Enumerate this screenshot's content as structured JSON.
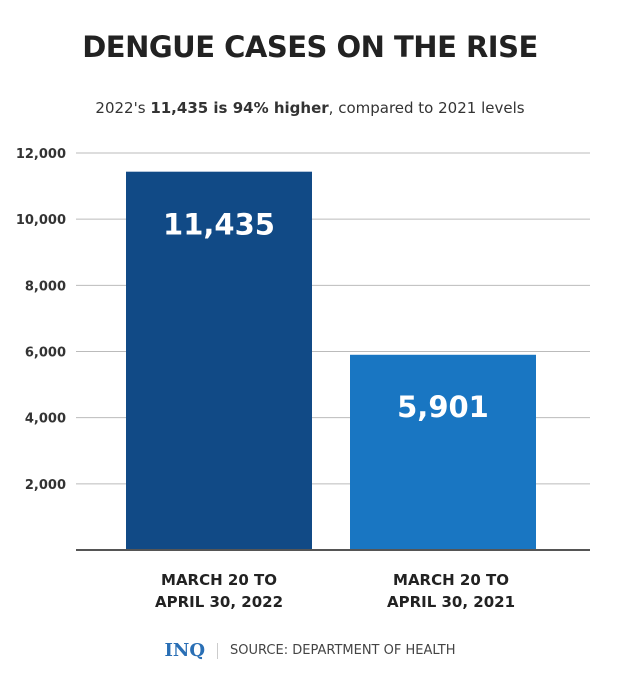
{
  "chart_data": {
    "type": "bar",
    "title": "DENGUE CASES ON THE RISE",
    "subtitle": {
      "pre": "2022's ",
      "bold": "11,435 is 94% higher",
      "post": ", compared to 2021 levels"
    },
    "categories": [
      "MARCH 20 TO\nAPRIL 30, 2022",
      "MARCH 20 TO\nAPRIL 30, 2021"
    ],
    "values": [
      11435,
      5901
    ],
    "data_labels": [
      "11,435",
      "5,901"
    ],
    "ylim": [
      0,
      12000
    ],
    "yticks": [
      2000,
      4000,
      6000,
      8000,
      10000,
      12000
    ],
    "ytick_labels": [
      "2,000",
      "4,000",
      "6,000",
      "8,000",
      "10,000",
      "12,000"
    ],
    "grid": true,
    "colors": [
      "#114a86",
      "#1976c2"
    ]
  },
  "footer": {
    "logo": "INQ",
    "source": "SOURCE: DEPARTMENT OF HEALTH"
  }
}
